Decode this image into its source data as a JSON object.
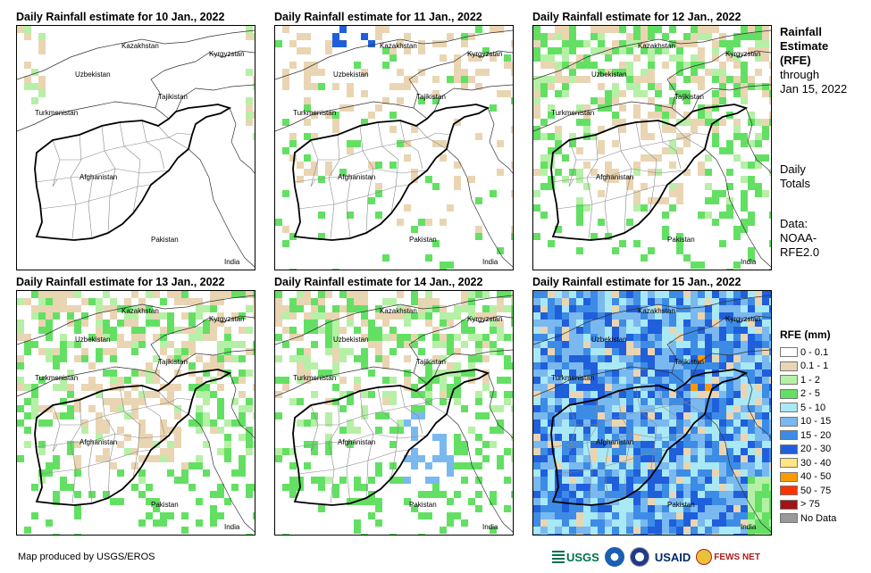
{
  "panels": [
    {
      "title": "Daily Rainfall estimate for 10 Jan., 2022",
      "level": 0
    },
    {
      "title": "Daily Rainfall estimate for 11 Jan., 2022",
      "level": 1
    },
    {
      "title": "Daily Rainfall estimate for 12 Jan., 2022",
      "level": 2
    },
    {
      "title": "Daily Rainfall estimate for 13 Jan., 2022",
      "level": 2
    },
    {
      "title": "Daily Rainfall estimate for 14 Jan., 2022",
      "level": 3
    },
    {
      "title": "Daily Rainfall estimate for 15 Jan., 2022",
      "level": 5
    }
  ],
  "map_labels": {
    "kazakhstan": "Kazakhstan",
    "kyrgyzstan": "Kyrgyzstan",
    "uzbekistan": "Uzbekistan",
    "tajikistan": "Tajikistan",
    "turkmenistan": "Turkmenistan",
    "afghanistan": "Afghanistan",
    "pakistan": "Pakistan",
    "india": "India"
  },
  "sidebar": {
    "title_line1": "Rainfall",
    "title_line2": "Estimate",
    "title_line3": "(RFE)",
    "through": "through",
    "date": "Jan 15, 2022",
    "daily1": "Daily",
    "daily2": "Totals",
    "data1": "Data:",
    "data2": "NOAA-",
    "data3": "RFE2.0"
  },
  "legend": {
    "title": "RFE (mm)",
    "items": [
      {
        "label": "0 - 0.1",
        "color": "#ffffff"
      },
      {
        "label": "0.1 - 1",
        "color": "#ead5b3"
      },
      {
        "label": "1 - 2",
        "color": "#b6f0a6"
      },
      {
        "label": "2 - 5",
        "color": "#63e063"
      },
      {
        "label": "5 - 10",
        "color": "#a9e8f5"
      },
      {
        "label": "10 - 15",
        "color": "#7ab8f0"
      },
      {
        "label": "15 - 20",
        "color": "#3c8ce6"
      },
      {
        "label": "20 - 30",
        "color": "#1f5fdc"
      },
      {
        "label": "30 - 40",
        "color": "#ffe680"
      },
      {
        "label": "40 - 50",
        "color": "#ff9900"
      },
      {
        "label": "50 - 75",
        "color": "#ff3300"
      },
      {
        "label": "> 75",
        "color": "#a01414"
      },
      {
        "label": "No Data",
        "color": "#999999"
      }
    ]
  },
  "credit": "Map produced by USGS/EROS",
  "logos": {
    "usgs": "USGS",
    "usaid": "USAID",
    "fewsnet": "FEWS NET"
  }
}
